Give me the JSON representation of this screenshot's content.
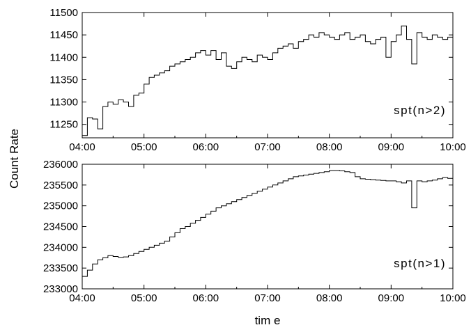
{
  "chart_data": [
    {
      "type": "line",
      "annotation": "spt(n>2)",
      "xlabel": "",
      "ylabel": "",
      "x_ticks": [
        "04:00",
        "05:00",
        "06:00",
        "07:00",
        "08:00",
        "09:00",
        "10:00"
      ],
      "xlim": [
        "04:00",
        "10:00"
      ],
      "ylim": [
        11220,
        11500
      ],
      "y_ticks": [
        11250,
        11300,
        11350,
        11400,
        11450,
        11500
      ],
      "series": [
        {
          "x": [
            "04:00",
            "04:05",
            "04:10",
            "04:15",
            "04:20",
            "04:25",
            "04:30",
            "04:35",
            "04:40",
            "04:45",
            "04:50",
            "04:55",
            "05:00",
            "05:05",
            "05:10",
            "05:15",
            "05:20",
            "05:25",
            "05:30",
            "05:35",
            "05:40",
            "05:45",
            "05:50",
            "05:55",
            "06:00",
            "06:05",
            "06:10",
            "06:15",
            "06:20",
            "06:25",
            "06:30",
            "06:35",
            "06:40",
            "06:45",
            "06:50",
            "06:55",
            "07:00",
            "07:05",
            "07:10",
            "07:15",
            "07:20",
            "07:25",
            "07:30",
            "07:35",
            "07:40",
            "07:45",
            "07:50",
            "07:55",
            "08:00",
            "08:05",
            "08:10",
            "08:15",
            "08:20",
            "08:25",
            "08:30",
            "08:35",
            "08:40",
            "08:45",
            "08:50",
            "08:55",
            "09:00",
            "09:05",
            "09:10",
            "09:15",
            "09:20",
            "09:25",
            "09:30",
            "09:35",
            "09:40",
            "09:45",
            "09:50",
            "09:55",
            "10:00"
          ],
          "values": [
            11225,
            11265,
            11262,
            11240,
            11290,
            11300,
            11295,
            11305,
            11300,
            11290,
            11315,
            11320,
            11340,
            11355,
            11360,
            11365,
            11370,
            11380,
            11385,
            11390,
            11395,
            11400,
            11410,
            11415,
            11405,
            11415,
            11395,
            11410,
            11380,
            11375,
            11390,
            11400,
            11395,
            11390,
            11405,
            11400,
            11395,
            11410,
            11420,
            11425,
            11430,
            11420,
            11435,
            11440,
            11450,
            11445,
            11455,
            11450,
            11445,
            11440,
            11450,
            11455,
            11440,
            11445,
            11450,
            11435,
            11430,
            11440,
            11445,
            11400,
            11435,
            11450,
            11470,
            11440,
            11385,
            11455,
            11445,
            11440,
            11450,
            11445,
            11440,
            11445,
            11420
          ]
        }
      ]
    },
    {
      "type": "line",
      "annotation": "spt(n>1)",
      "xlabel": "tim e",
      "ylabel": "",
      "x_ticks": [
        "04:00",
        "05:00",
        "06:00",
        "07:00",
        "08:00",
        "09:00",
        "10:00"
      ],
      "xlim": [
        "04:00",
        "10:00"
      ],
      "ylim": [
        233000,
        236000
      ],
      "y_ticks": [
        233000,
        233500,
        234000,
        234500,
        235000,
        235500,
        236000
      ],
      "series": [
        {
          "x": [
            "04:00",
            "04:05",
            "04:10",
            "04:15",
            "04:20",
            "04:25",
            "04:30",
            "04:35",
            "04:40",
            "04:45",
            "04:50",
            "04:55",
            "05:00",
            "05:05",
            "05:10",
            "05:15",
            "05:20",
            "05:25",
            "05:30",
            "05:35",
            "05:40",
            "05:45",
            "05:50",
            "05:55",
            "06:00",
            "06:05",
            "06:10",
            "06:15",
            "06:20",
            "06:25",
            "06:30",
            "06:35",
            "06:40",
            "06:45",
            "06:50",
            "06:55",
            "07:00",
            "07:05",
            "07:10",
            "07:15",
            "07:20",
            "07:25",
            "07:30",
            "07:35",
            "07:40",
            "07:45",
            "07:50",
            "07:55",
            "08:00",
            "08:05",
            "08:10",
            "08:15",
            "08:20",
            "08:25",
            "08:30",
            "08:35",
            "08:40",
            "08:45",
            "08:50",
            "08:55",
            "09:00",
            "09:05",
            "09:10",
            "09:15",
            "09:20",
            "09:25",
            "09:30",
            "09:35",
            "09:40",
            "09:45",
            "09:50",
            "09:55",
            "10:00"
          ],
          "values": [
            233300,
            233450,
            233600,
            233700,
            233750,
            233800,
            233780,
            233760,
            233770,
            233800,
            233850,
            233900,
            233950,
            234000,
            234050,
            234100,
            234150,
            234250,
            234350,
            234450,
            234500,
            234580,
            234650,
            234720,
            234800,
            234870,
            234950,
            235000,
            235050,
            235100,
            235150,
            235200,
            235250,
            235300,
            235350,
            235400,
            235450,
            235500,
            235550,
            235600,
            235650,
            235700,
            235720,
            235740,
            235760,
            235780,
            235800,
            235820,
            235850,
            235850,
            235840,
            235820,
            235800,
            235700,
            235650,
            235640,
            235630,
            235620,
            235610,
            235600,
            235600,
            235580,
            235550,
            235600,
            234950,
            235600,
            235580,
            235600,
            235620,
            235650,
            235680,
            235660,
            235640
          ]
        }
      ]
    }
  ],
  "shared": {
    "ylabel": "Count Rate"
  }
}
